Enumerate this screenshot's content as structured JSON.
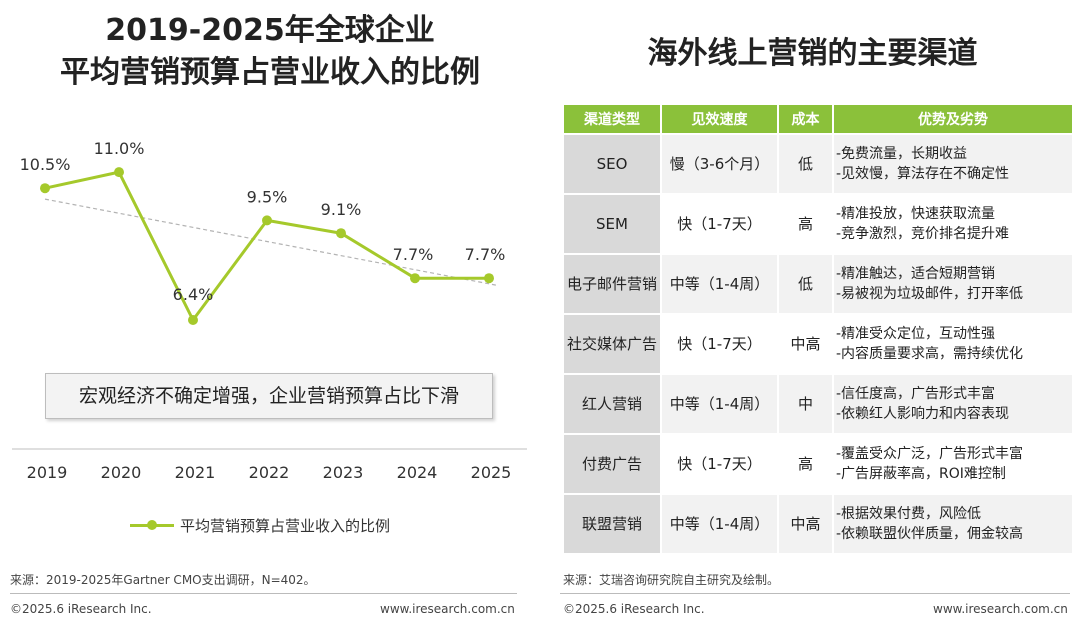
{
  "left": {
    "title_line1": "2019-2025年全球企业",
    "title_line2": "平均营销预算占营业收入的比例",
    "note": "宏观经济不确定增强，企业营销预算占比下滑",
    "source": "来源：2019-2025年Gartner CMO支出调研，N=402。",
    "footer_left": "©2025.6 iResearch Inc.",
    "footer_right": "www.iresearch.com.cn"
  },
  "right": {
    "title": "海外线上营销的主要渠道",
    "source": "来源：艾瑞咨询研究院自主研究及绘制。",
    "footer_left": "©2025.6 iResearch Inc.",
    "footer_right": "www.iresearch.com.cn"
  },
  "chart_data": [
    {
      "type": "line",
      "title": "2019-2025年全球企业平均营销预算占营业收入的比例",
      "categories": [
        "2019",
        "2020",
        "2021",
        "2022",
        "2023",
        "2024",
        "2025"
      ],
      "series": [
        {
          "name": "平均营销预算占营业收入的比例",
          "values": [
            10.5,
            11.0,
            6.4,
            9.5,
            9.1,
            7.7,
            7.7
          ],
          "labels": [
            "10.5%",
            "11.0%",
            "6.4%",
            "9.5%",
            "9.1%",
            "7.7%",
            "7.7%"
          ],
          "color": "#a5c92b"
        }
      ],
      "trendline": {
        "style": "dashed",
        "color": "#b3b3b3"
      },
      "ylim": [
        5,
        12
      ],
      "grid": false,
      "legend": "bottom"
    },
    {
      "type": "table",
      "title": "海外线上营销的主要渠道",
      "columns": [
        "渠道类型",
        "见效速度",
        "成本",
        "优势及劣势"
      ],
      "rows": [
        {
          "channel": "SEO",
          "speed": "慢（3-6个月）",
          "cost": "低",
          "pros": "-免费流量，长期收益",
          "cons": "-见效慢，算法存在不确定性"
        },
        {
          "channel": "SEM",
          "speed": "快（1-7天）",
          "cost": "高",
          "pros": "-精准投放，快速获取流量",
          "cons": "-竞争激烈，竞价排名提升难"
        },
        {
          "channel": "电子邮件营销",
          "speed": "中等（1-4周）",
          "cost": "低",
          "pros": "-精准触达，适合短期营销",
          "cons": "-易被视为垃圾邮件，打开率低"
        },
        {
          "channel": "社交媒体广告",
          "speed": "快（1-7天）",
          "cost": "中高",
          "pros": "-精准受众定位，互动性强",
          "cons": "-内容质量要求高，需持续优化"
        },
        {
          "channel": "红人营销",
          "speed": "中等（1-4周）",
          "cost": "中",
          "pros": "-信任度高，广告形式丰富",
          "cons": "-依赖红人影响力和内容表现"
        },
        {
          "channel": "付费广告",
          "speed": "快（1-7天）",
          "cost": "高",
          "pros": "-覆盖受众广泛，广告形式丰富",
          "cons": "-广告屏蔽率高，ROI难控制"
        },
        {
          "channel": "联盟营销",
          "speed": "中等（1-4周）",
          "cost": "中高",
          "pros": "-根据效果付费，风险低",
          "cons": "-依赖联盟伙伴质量，佣金较高"
        }
      ],
      "header_color": "#8bc13a"
    }
  ]
}
